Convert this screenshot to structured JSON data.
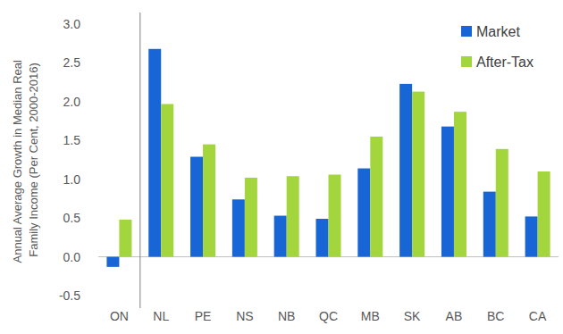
{
  "chart_data": {
    "type": "bar",
    "y_label": "Annual Average Growth in Median Real Family Income (Per Cent, 2000-2016)",
    "categories": [
      "ON",
      "NL",
      "PE",
      "NS",
      "NB",
      "QC",
      "MB",
      "SK",
      "AB",
      "BC",
      "CA"
    ],
    "series": [
      {
        "name": "Market",
        "color": "#1866d6",
        "values": [
          -0.13,
          2.68,
          1.29,
          0.74,
          0.53,
          0.49,
          1.14,
          2.23,
          1.68,
          0.84,
          0.52
        ]
      },
      {
        "name": "After-Tax",
        "color": "#a3d63c",
        "values": [
          0.48,
          1.97,
          1.45,
          1.02,
          1.04,
          1.06,
          1.55,
          2.13,
          1.87,
          1.39,
          1.1
        ]
      }
    ],
    "ylim": [
      -0.5,
      3.0
    ],
    "yticks": [
      -0.5,
      {
        "value": 0,
        "label": "0.0"
      },
      0.5,
      {
        "value": 1,
        "label": "1.0"
      },
      1.5,
      {
        "value": 2,
        "label": "2.0"
      },
      2.5,
      {
        "value": 3,
        "label": "3.0"
      }
    ],
    "grid": false,
    "legend": "upper-right"
  }
}
